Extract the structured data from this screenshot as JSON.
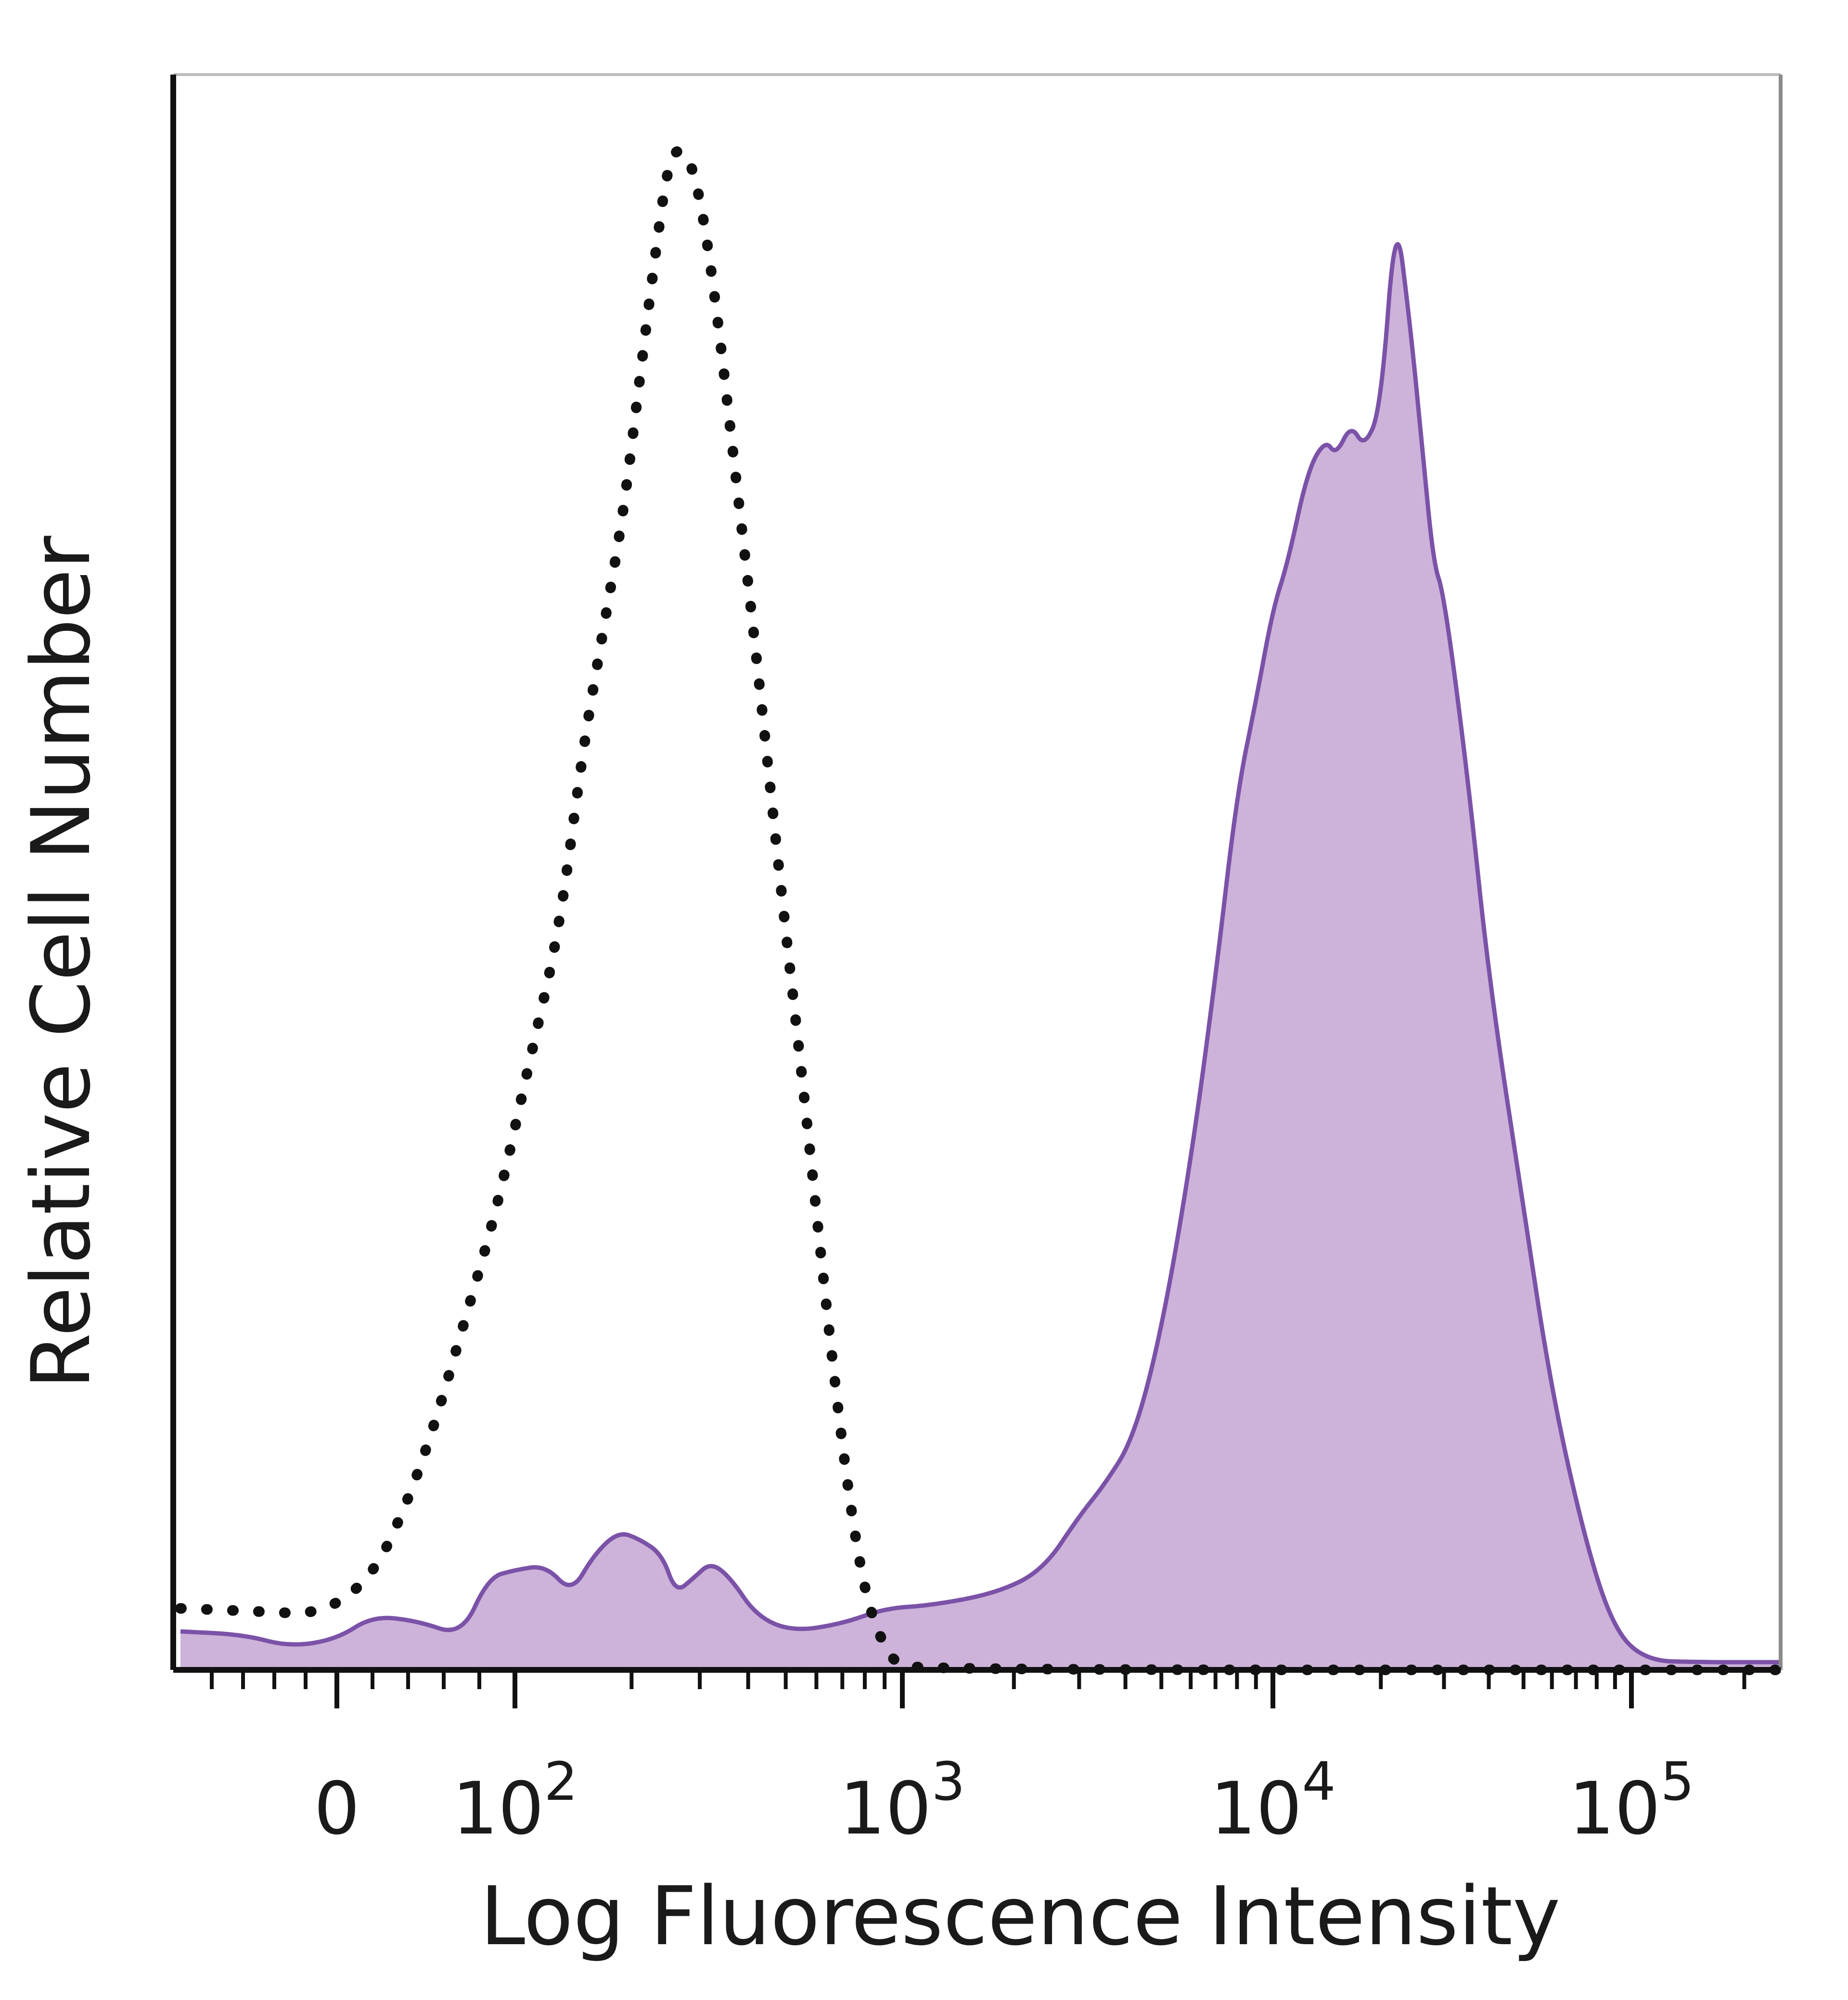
{
  "chart_data": {
    "type": "area",
    "title": "",
    "xlabel": "Log Fluorescence Intensity",
    "ylabel": "Relative Cell Number",
    "x_scale": "biexponential",
    "xlim": [
      -100,
      250000
    ],
    "ylim": [
      0,
      100
    ],
    "grid": false,
    "x_ticks": [
      {
        "value": 0,
        "base": "0",
        "exp": ""
      },
      {
        "value": 100,
        "base": "10",
        "exp": "2"
      },
      {
        "value": 1000,
        "base": "10",
        "exp": "3"
      },
      {
        "value": 10000,
        "base": "10",
        "exp": "4"
      },
      {
        "value": 100000,
        "base": "10",
        "exp": "5"
      }
    ],
    "series": [
      {
        "style": "dotted",
        "fill": false,
        "color": "#111111",
        "points": [
          [
            -100,
            4
          ],
          [
            -50,
            3.8
          ],
          [
            -10,
            3.6
          ],
          [
            20,
            6
          ],
          [
            40,
            11
          ],
          [
            55,
            16
          ],
          [
            70,
            22
          ],
          [
            90,
            30
          ],
          [
            110,
            40
          ],
          [
            130,
            48
          ],
          [
            150,
            60
          ],
          [
            170,
            68
          ],
          [
            190,
            75
          ],
          [
            210,
            84
          ],
          [
            230,
            92
          ],
          [
            250,
            98.5
          ],
          [
            275,
            99
          ],
          [
            300,
            96
          ],
          [
            330,
            89
          ],
          [
            370,
            78
          ],
          [
            420,
            66
          ],
          [
            480,
            52
          ],
          [
            560,
            37
          ],
          [
            640,
            23
          ],
          [
            720,
            12
          ],
          [
            800,
            5
          ],
          [
            880,
            2
          ],
          [
            950,
            0.5
          ],
          [
            1100,
            0
          ],
          [
            250000,
            0
          ]
        ]
      },
      {
        "style": "solid",
        "fill": true,
        "color": "#7b52a8",
        "fill_color": "#cdb3d9",
        "points": [
          [
            -100,
            2.5
          ],
          [
            -60,
            2.3
          ],
          [
            -30,
            1.5
          ],
          [
            0,
            2
          ],
          [
            20,
            3.5
          ],
          [
            45,
            3.2
          ],
          [
            70,
            2.2
          ],
          [
            85,
            6
          ],
          [
            100,
            6.5
          ],
          [
            120,
            6.8
          ],
          [
            140,
            5
          ],
          [
            160,
            7.5
          ],
          [
            185,
            9
          ],
          [
            210,
            8.5
          ],
          [
            240,
            7.5
          ],
          [
            260,
            5
          ],
          [
            290,
            6
          ],
          [
            320,
            7
          ],
          [
            360,
            6
          ],
          [
            420,
            3.5
          ],
          [
            520,
            2.5
          ],
          [
            700,
            3
          ],
          [
            900,
            4
          ],
          [
            1200,
            4.2
          ],
          [
            1800,
            5
          ],
          [
            2400,
            6.5
          ],
          [
            3000,
            10
          ],
          [
            3500,
            12
          ],
          [
            4200,
            15
          ],
          [
            5000,
            22
          ],
          [
            6000,
            33
          ],
          [
            7000,
            45
          ],
          [
            8000,
            57
          ],
          [
            9000,
            63
          ],
          [
            10000,
            69
          ],
          [
            11000,
            72
          ],
          [
            12500,
            78
          ],
          [
            14000,
            80
          ],
          [
            15000,
            79
          ],
          [
            16500,
            81
          ],
          [
            18000,
            79.5
          ],
          [
            20000,
            82
          ],
          [
            22000,
            95
          ],
          [
            24000,
            88
          ],
          [
            26000,
            80
          ],
          [
            28000,
            72
          ],
          [
            30000,
            70
          ],
          [
            35000,
            58
          ],
          [
            40000,
            45
          ],
          [
            50000,
            30
          ],
          [
            60000,
            18
          ],
          [
            75000,
            8
          ],
          [
            90000,
            2.5
          ],
          [
            110000,
            0.6
          ],
          [
            150000,
            0.5
          ],
          [
            250000,
            0.5
          ]
        ]
      }
    ]
  }
}
